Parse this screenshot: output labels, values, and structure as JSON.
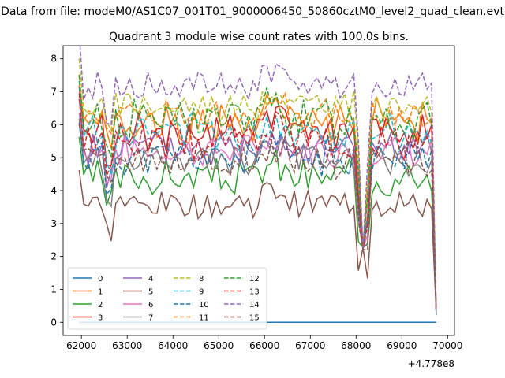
{
  "chart_data": {
    "type": "line",
    "suptitle": "Data from file: modeM0/AS1C07_001T01_9000006450_50860cztM0_level2_quad_clean.evt",
    "title": "Quadrant 3 module wise count rates with 100.0s bins.",
    "xlabel": "",
    "ylabel": "",
    "x_offset_label": "+4.778e8",
    "x_offset": 477800000,
    "xlim": [
      61600,
      70150
    ],
    "ylim": [
      -0.4,
      8.4
    ],
    "x_ticks": [
      62000,
      63000,
      64000,
      65000,
      66000,
      67000,
      68000,
      69000,
      70000
    ],
    "x_tick_labels": [
      "62000",
      "63000",
      "64000",
      "65000",
      "66000",
      "67000",
      "68000",
      "69000",
      "70000"
    ],
    "y_ticks": [
      0,
      1,
      2,
      3,
      4,
      5,
      6,
      7,
      8
    ],
    "y_tick_labels": [
      "0",
      "1",
      "2",
      "3",
      "4",
      "5",
      "6",
      "7",
      "8"
    ],
    "x_start": 61950,
    "x_step": 100,
    "n_points": 79,
    "legend": {
      "placement": "lower-left",
      "columns": 4
    },
    "series": [
      {
        "name": "0",
        "color": "#1f77b4",
        "dash": "solid",
        "base": 0.0,
        "amp": 0.0,
        "seed": 1
      },
      {
        "name": "1",
        "color": "#ff7f0e",
        "dash": "solid",
        "base": 6.1,
        "amp": 0.55,
        "seed": 2
      },
      {
        "name": "2",
        "color": "#2ca02c",
        "dash": "solid",
        "base": 4.4,
        "amp": 0.5,
        "seed": 3
      },
      {
        "name": "3",
        "color": "#d62728",
        "dash": "solid",
        "base": 5.8,
        "amp": 0.5,
        "seed": 4
      },
      {
        "name": "4",
        "color": "#9467bd",
        "dash": "solid",
        "base": 5.3,
        "amp": 0.45,
        "seed": 5
      },
      {
        "name": "5",
        "color": "#8c564b",
        "dash": "solid",
        "base": 3.6,
        "amp": 0.35,
        "seed": 6
      },
      {
        "name": "6",
        "color": "#e377c2",
        "dash": "solid",
        "base": 5.2,
        "amp": 0.45,
        "seed": 7
      },
      {
        "name": "7",
        "color": "#7f7f7f",
        "dash": "solid",
        "base": 4.9,
        "amp": 0.45,
        "seed": 8
      },
      {
        "name": "8",
        "color": "#bcbd22",
        "dash": "dashed",
        "base": 6.6,
        "amp": 0.4,
        "seed": 9
      },
      {
        "name": "9",
        "color": "#17becf",
        "dash": "dashed",
        "base": 5.8,
        "amp": 0.5,
        "seed": 10
      },
      {
        "name": "10",
        "color": "#1f77b4",
        "dash": "dashed",
        "base": 5.0,
        "amp": 0.5,
        "seed": 11
      },
      {
        "name": "11",
        "color": "#ff7f0e",
        "dash": "dashed",
        "base": 6.3,
        "amp": 0.45,
        "seed": 12
      },
      {
        "name": "12",
        "color": "#2ca02c",
        "dash": "dashed",
        "base": 6.2,
        "amp": 0.55,
        "seed": 13
      },
      {
        "name": "13",
        "color": "#d62728",
        "dash": "dashed",
        "base": 5.5,
        "amp": 0.5,
        "seed": 14
      },
      {
        "name": "14",
        "color": "#9467bd",
        "dash": "dashed",
        "base": 7.2,
        "amp": 0.35,
        "seed": 15
      },
      {
        "name": "15",
        "color": "#8c564b",
        "dash": "dashed",
        "base": 4.9,
        "amp": 0.5,
        "seed": 16
      }
    ],
    "notes": "Series values are approximate readings: counts fluctuate around each base level, drop sharply near x=68150 and fall to ~0.2 at the final bin (x~69750)."
  }
}
